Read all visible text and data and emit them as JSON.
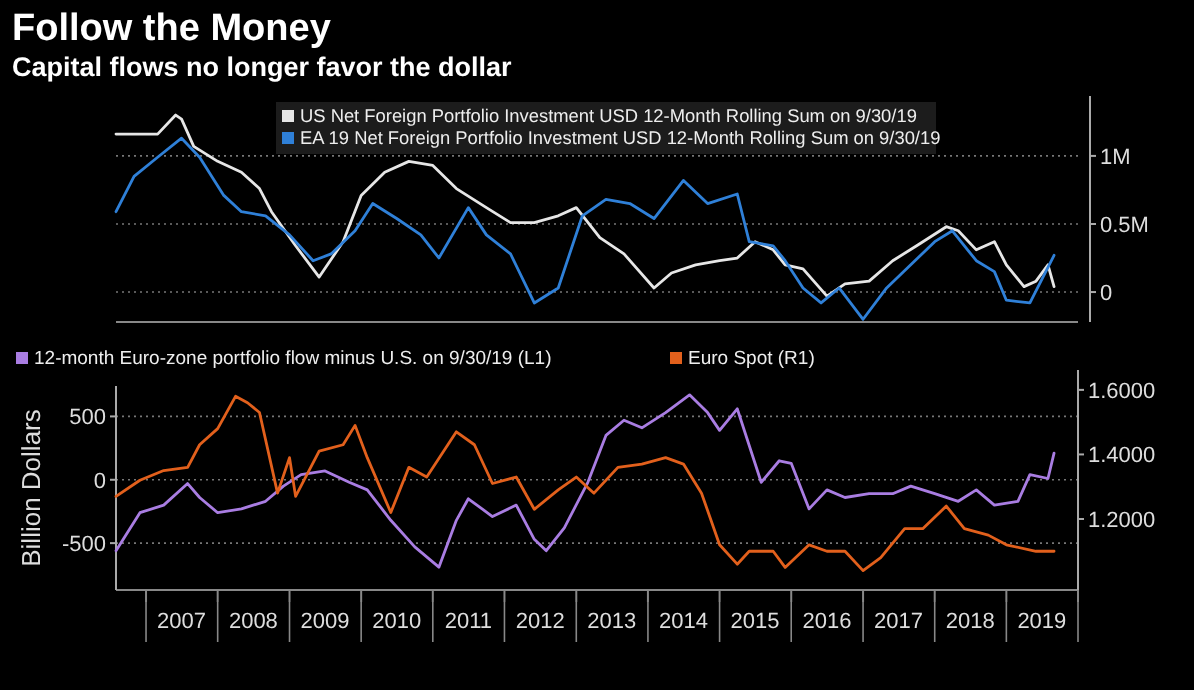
{
  "chart_data": [
    {
      "type": "line",
      "title": "Follow the Money",
      "subtitle": "Capital flows no longer favor the dollar",
      "xlim": [
        "2006-08",
        "2020-01"
      ],
      "ylim": [
        -0.22,
        1.44
      ],
      "yticks": [
        0,
        {
          "value": 0.5,
          "label": "0.5M"
        },
        {
          "value": 1,
          "label": "1M"
        }
      ],
      "grid": "y",
      "legend": "top left",
      "tick_labels": "y",
      "series": [
        {
          "name": "US Net Foreign Portfolio Investment USD 12-Month Rolling Sum  on 9/30/19",
          "color": "#e6e6e6",
          "x": [
            "2006-08",
            "2007-03",
            "2007-06",
            "2007-07",
            "2007-09",
            "2008-01",
            "2008-05",
            "2008-08",
            "2008-10",
            "2009-02",
            "2009-06",
            "2009-10",
            "2010-01",
            "2010-05",
            "2010-09",
            "2011-01",
            "2011-05",
            "2011-10",
            "2012-02",
            "2012-06",
            "2012-10",
            "2013-01",
            "2013-05",
            "2013-09",
            "2014-02",
            "2014-05",
            "2014-09",
            "2015-01",
            "2015-04",
            "2015-07",
            "2015-10",
            "2015-12",
            "2016-03",
            "2016-07",
            "2016-10",
            "2017-02",
            "2017-06",
            "2017-10",
            "2018-03",
            "2018-05",
            "2018-08",
            "2018-11",
            "2019-01",
            "2019-04",
            "2019-06",
            "2019-08",
            "2019-09"
          ],
          "values": [
            1.16,
            1.16,
            1.3,
            1.27,
            1.07,
            0.96,
            0.88,
            0.76,
            0.59,
            0.34,
            0.11,
            0.37,
            0.71,
            0.88,
            0.96,
            0.93,
            0.76,
            0.62,
            0.51,
            0.51,
            0.56,
            0.62,
            0.4,
            0.28,
            0.03,
            0.14,
            0.2,
            0.23,
            0.25,
            0.37,
            0.31,
            0.2,
            0.17,
            -0.03,
            0.06,
            0.08,
            0.23,
            0.34,
            0.48,
            0.45,
            0.31,
            0.37,
            0.2,
            0.04,
            0.08,
            0.2,
            0.04
          ]
        },
        {
          "name": "EA 19 Net Foreign Portfolio Investment USD 12-Month Rolling Sum  on 9/30/19",
          "color": "#2f80d8",
          "x": [
            "2006-08",
            "2006-11",
            "2007-03",
            "2007-07",
            "2007-10",
            "2008-02",
            "2008-05",
            "2008-09",
            "2009-01",
            "2009-05",
            "2009-08",
            "2009-12",
            "2010-03",
            "2010-07",
            "2010-11",
            "2011-02",
            "2011-07",
            "2011-10",
            "2012-02",
            "2012-06",
            "2012-10",
            "2013-02",
            "2013-06",
            "2013-10",
            "2014-02",
            "2014-07",
            "2014-11",
            "2015-04",
            "2015-06",
            "2015-10",
            "2015-12",
            "2016-03",
            "2016-06",
            "2016-09",
            "2017-01",
            "2017-05",
            "2017-09",
            "2018-01",
            "2018-04",
            "2018-08",
            "2018-11",
            "2019-01",
            "2019-05",
            "2019-09"
          ],
          "values": [
            0.59,
            0.85,
            0.99,
            1.13,
            0.99,
            0.71,
            0.59,
            0.56,
            0.42,
            0.23,
            0.28,
            0.45,
            0.65,
            0.54,
            0.42,
            0.25,
            0.62,
            0.42,
            0.28,
            -0.08,
            0.03,
            0.56,
            0.68,
            0.65,
            0.54,
            0.82,
            0.65,
            0.72,
            0.37,
            0.34,
            0.23,
            0.03,
            -0.08,
            0.03,
            -0.2,
            0.03,
            0.2,
            0.37,
            0.45,
            0.23,
            0.15,
            -0.06,
            -0.08,
            0.27
          ]
        }
      ]
    },
    {
      "type": "line",
      "ylabel": "Billion Dollars",
      "xlim": [
        "2006-08",
        "2020-01"
      ],
      "xticks": [
        {
          "value": "2007-01",
          "label": null
        },
        {
          "value": "2007-07",
          "label": "2007"
        },
        {
          "value": "2008-01",
          "label": null
        },
        {
          "value": "2008-07",
          "label": "2008"
        },
        {
          "value": "2009-01",
          "label": null
        },
        {
          "value": "2009-07",
          "label": "2009"
        },
        {
          "value": "2010-01",
          "label": null
        },
        {
          "value": "2010-07",
          "label": "2010"
        },
        {
          "value": "2011-01",
          "label": null
        },
        {
          "value": "2011-07",
          "label": "2011"
        },
        {
          "value": "2012-01",
          "label": null
        },
        {
          "value": "2012-07",
          "label": "2012"
        },
        {
          "value": "2013-01",
          "label": null
        },
        {
          "value": "2013-07",
          "label": "2013"
        },
        {
          "value": "2014-01",
          "label": null
        },
        {
          "value": "2014-07",
          "label": "2014"
        },
        {
          "value": "2015-01",
          "label": null
        },
        {
          "value": "2015-07",
          "label": "2015"
        },
        {
          "value": "2016-01",
          "label": null
        },
        {
          "value": "2016-07",
          "label": "2016"
        },
        {
          "value": "2017-01",
          "label": null
        },
        {
          "value": "2017-07",
          "label": "2017"
        },
        {
          "value": "2018-01",
          "label": null
        },
        {
          "value": "2018-07",
          "label": "2018"
        },
        {
          "value": "2019-01",
          "label": null
        },
        {
          "value": "2019-07",
          "label": "2019"
        },
        {
          "value": "2020-01",
          "label": null
        }
      ],
      "ylim": [
        -870,
        740
      ],
      "yticks": [
        -500,
        0,
        500
      ],
      "y2lim": [
        0.98,
        1.612
      ],
      "y2ticks": [
        {
          "value": 1.2,
          "label": "1.2000"
        },
        {
          "value": 1.4,
          "label": "1.4000"
        },
        {
          "value": 1.6,
          "label": "1.6000"
        }
      ],
      "grid": "y",
      "legend": "top",
      "series": [
        {
          "name": "12-month Euro-zone portfolio flow minus U.S. on 9/30/19 (L1)",
          "color": "#a97de2",
          "axis": "y",
          "x": [
            "2006-08",
            "2006-12",
            "2007-04",
            "2007-08",
            "2007-10",
            "2008-01",
            "2008-05",
            "2008-09",
            "2008-12",
            "2009-03",
            "2009-07",
            "2009-11",
            "2010-02",
            "2010-06",
            "2010-10",
            "2011-02",
            "2011-05",
            "2011-07",
            "2011-11",
            "2012-03",
            "2012-06",
            "2012-08",
            "2012-11",
            "2013-03",
            "2013-06",
            "2013-09",
            "2013-12",
            "2014-04",
            "2014-08",
            "2014-11",
            "2015-01",
            "2015-04",
            "2015-08",
            "2015-11",
            "2016-01",
            "2016-04",
            "2016-07",
            "2016-10",
            "2017-02",
            "2017-06",
            "2017-09",
            "2018-01",
            "2018-05",
            "2018-08",
            "2018-11",
            "2019-03",
            "2019-05",
            "2019-08",
            "2019-09"
          ],
          "values": [
            -560,
            -260,
            -200,
            -30,
            -140,
            -260,
            -230,
            -170,
            -50,
            40,
            70,
            -20,
            -80,
            -320,
            -530,
            -690,
            -320,
            -150,
            -290,
            -200,
            -470,
            -560,
            -380,
            -20,
            350,
            470,
            410,
            530,
            670,
            530,
            390,
            560,
            -20,
            150,
            130,
            -230,
            -80,
            -140,
            -110,
            -110,
            -50,
            -110,
            -170,
            -80,
            -200,
            -170,
            40,
            10,
            210
          ]
        },
        {
          "name": "Euro Spot  (R1)",
          "color": "#e2601c",
          "axis": "y2",
          "x": [
            "2006-08",
            "2006-12",
            "2007-04",
            "2007-08",
            "2007-10",
            "2008-01",
            "2008-04",
            "2008-06",
            "2008-08",
            "2008-11",
            "2009-01",
            "2009-02",
            "2009-06",
            "2009-10",
            "2009-12",
            "2010-02",
            "2010-06",
            "2010-09",
            "2010-12",
            "2011-05",
            "2011-08",
            "2011-11",
            "2012-03",
            "2012-06",
            "2012-10",
            "2013-01",
            "2013-04",
            "2013-08",
            "2013-12",
            "2014-04",
            "2014-07",
            "2014-10",
            "2015-01",
            "2015-04",
            "2015-06",
            "2015-10",
            "2015-12",
            "2016-04",
            "2016-07",
            "2016-10",
            "2017-01",
            "2017-04",
            "2017-08",
            "2017-11",
            "2018-03",
            "2018-06",
            "2018-10",
            "2019-01",
            "2019-06",
            "2019-09"
          ],
          "values": [
            1.27,
            1.32,
            1.35,
            1.36,
            1.43,
            1.48,
            1.58,
            1.56,
            1.53,
            1.28,
            1.39,
            1.27,
            1.41,
            1.43,
            1.49,
            1.39,
            1.22,
            1.36,
            1.33,
            1.47,
            1.43,
            1.31,
            1.33,
            1.23,
            1.29,
            1.33,
            1.28,
            1.36,
            1.37,
            1.39,
            1.37,
            1.28,
            1.12,
            1.06,
            1.1,
            1.1,
            1.05,
            1.12,
            1.1,
            1.1,
            1.04,
            1.08,
            1.17,
            1.17,
            1.24,
            1.17,
            1.15,
            1.12,
            1.1,
            1.1
          ]
        }
      ]
    }
  ]
}
